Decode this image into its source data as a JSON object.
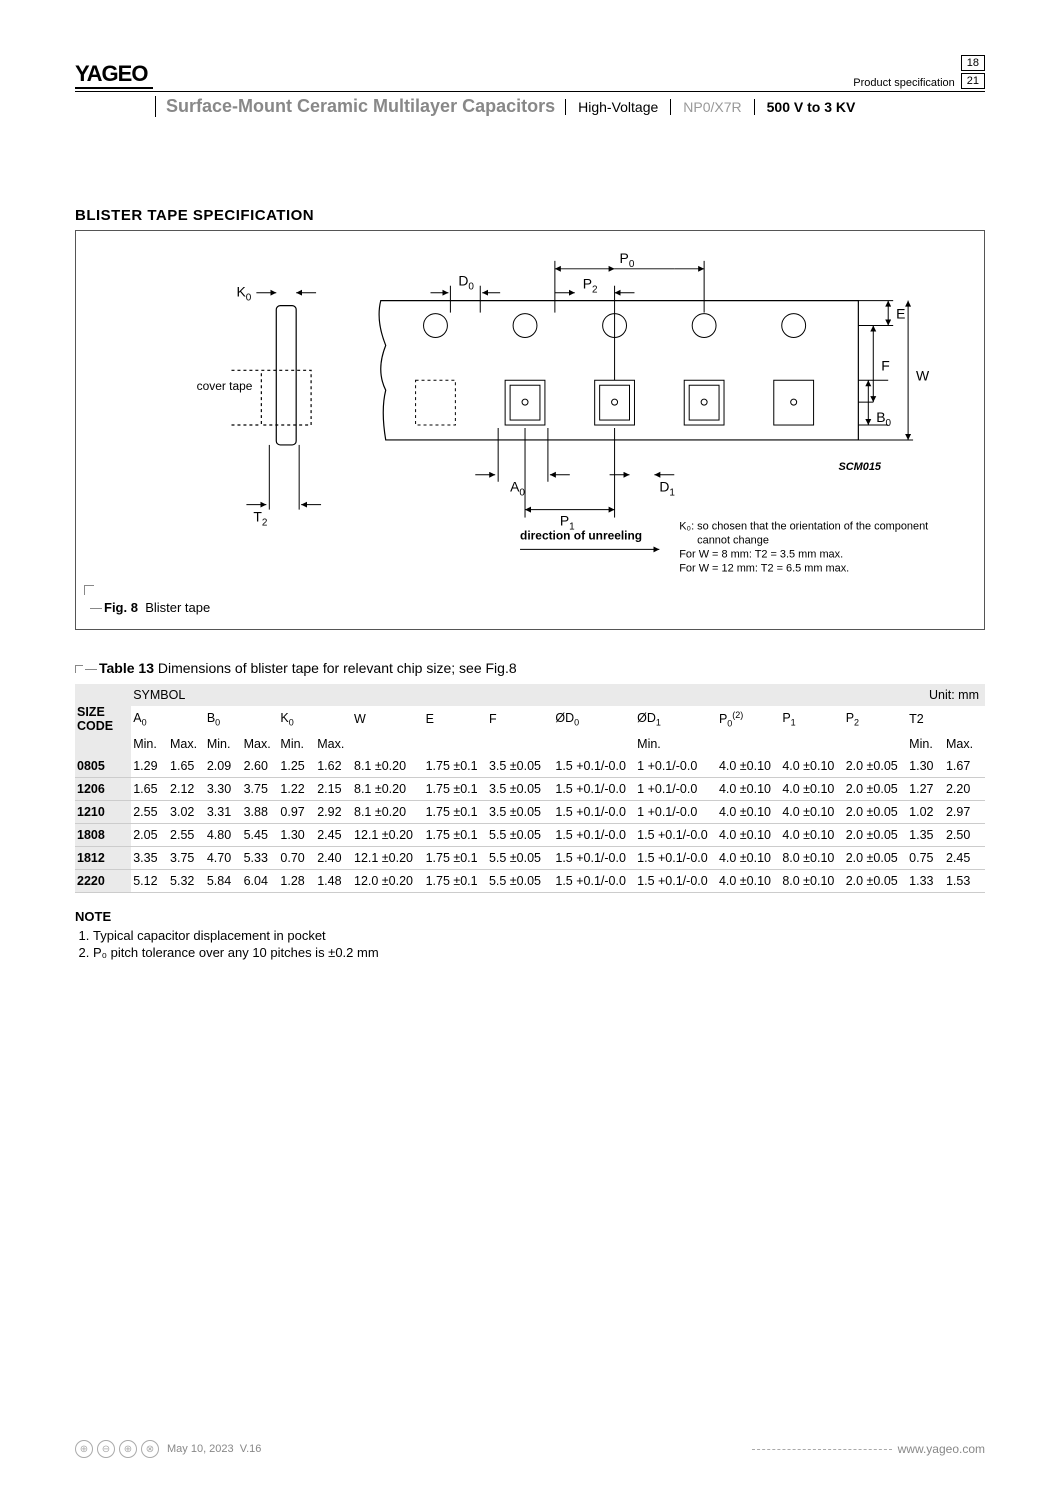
{
  "header": {
    "logo": "YAGEO",
    "spec_label": "Product specification",
    "page_current": "18",
    "page_total": "21",
    "title": "Surface-Mount Ceramic Multilayer Capacitors",
    "tag1": "High-Voltage",
    "tag2": "NP0/X7R",
    "tag3": "500 V to 3 KV"
  },
  "section": {
    "title": "BLISTER TAPE SPECIFICATION"
  },
  "figure": {
    "number": "Fig. 8",
    "caption": "Blister tape",
    "labels": {
      "K0": "K",
      "K0sub": "0",
      "cover_tape": "cover tape",
      "T2": "T",
      "T2sub": "2",
      "D0": "D",
      "D0sub": "0",
      "A0": "A",
      "A0sub": "0",
      "P1": "P",
      "P1sub": "1",
      "D1": "D",
      "D1sub": "1",
      "P0": "P",
      "P0sub": "0",
      "P2": "P",
      "P2sub": "2",
      "E": "E",
      "F": "F",
      "W": "W",
      "B0": "B",
      "B0sub": "0",
      "diagram_code": "SCM015",
      "direction": "direction of unreeling",
      "note1": "K₀: so chosen that the orientation of the component",
      "note2": "cannot change",
      "note3": "For W = 8 mm: T2 = 3.5 mm max.",
      "note4": "For W = 12 mm: T2 = 6.5 mm max."
    }
  },
  "table": {
    "number": "Table 13",
    "caption": "Dimensions of blister tape for relevant chip size; see Fig.8",
    "unit": "Unit: mm",
    "hdr_symbol": "SYMBOL",
    "hdr_size": "SIZE CODE",
    "cols": {
      "A0": "A",
      "B0": "B",
      "K0": "K",
      "W": "W",
      "E": "E",
      "F": "F",
      "D0": "ØD",
      "D1": "ØD",
      "P0": "P",
      "P1": "P",
      "P2": "P",
      "T2": "T2"
    },
    "subs": {
      "A0": "0",
      "B0": "0",
      "K0": "0",
      "D0": "0",
      "D1": "1",
      "P0": "0",
      "P0sup": "(2)",
      "P1": "1",
      "P2": "2"
    },
    "minmax": {
      "min": "Min.",
      "max": "Max."
    },
    "rows": [
      {
        "code": "0805",
        "a": [
          "1.29",
          "1.65"
        ],
        "b": [
          "2.09",
          "2.60"
        ],
        "k": [
          "1.25",
          "1.62"
        ],
        "w": "8.1 ±0.20",
        "e": "1.75 ±0.1",
        "f": "3.5 ±0.05",
        "d0": "1.5 +0.1/-0.0",
        "d1": "1 +0.1/-0.0",
        "p0": "4.0 ±0.10",
        "p1": "4.0 ±0.10",
        "p2": "2.0 ±0.05",
        "t2": [
          "1.30",
          "1.67"
        ]
      },
      {
        "code": "1206",
        "a": [
          "1.65",
          "2.12"
        ],
        "b": [
          "3.30",
          "3.75"
        ],
        "k": [
          "1.22",
          "2.15"
        ],
        "w": "8.1 ±0.20",
        "e": "1.75 ±0.1",
        "f": "3.5 ±0.05",
        "d0": "1.5 +0.1/-0.0",
        "d1": "1 +0.1/-0.0",
        "p0": "4.0 ±0.10",
        "p1": "4.0 ±0.10",
        "p2": "2.0 ±0.05",
        "t2": [
          "1.27",
          "2.20"
        ]
      },
      {
        "code": "1210",
        "a": [
          "2.55",
          "3.02"
        ],
        "b": [
          "3.31",
          "3.88"
        ],
        "k": [
          "0.97",
          "2.92"
        ],
        "w": "8.1 ±0.20",
        "e": "1.75 ±0.1",
        "f": "3.5 ±0.05",
        "d0": "1.5 +0.1/-0.0",
        "d1": "1 +0.1/-0.0",
        "p0": "4.0 ±0.10",
        "p1": "4.0 ±0.10",
        "p2": "2.0 ±0.05",
        "t2": [
          "1.02",
          "2.97"
        ]
      },
      {
        "code": "1808",
        "a": [
          "2.05",
          "2.55"
        ],
        "b": [
          "4.80",
          "5.45"
        ],
        "k": [
          "1.30",
          "2.45"
        ],
        "w": "12.1 ±0.20",
        "e": "1.75 ±0.1",
        "f": "5.5 ±0.05",
        "d0": "1.5 +0.1/-0.0",
        "d1": "1.5 +0.1/-0.0",
        "p0": "4.0 ±0.10",
        "p1": "4.0 ±0.10",
        "p2": "2.0 ±0.05",
        "t2": [
          "1.35",
          "2.50"
        ]
      },
      {
        "code": "1812",
        "a": [
          "3.35",
          "3.75"
        ],
        "b": [
          "4.70",
          "5.33"
        ],
        "k": [
          "0.70",
          "2.40"
        ],
        "w": "12.1 ±0.20",
        "e": "1.75 ±0.1",
        "f": "5.5 ±0.05",
        "d0": "1.5 +0.1/-0.0",
        "d1": "1.5 +0.1/-0.0",
        "p0": "4.0 ±0.10",
        "p1": "8.0 ±0.10",
        "p2": "2.0 ±0.05",
        "t2": [
          "0.75",
          "2.45"
        ]
      },
      {
        "code": "2220",
        "a": [
          "5.12",
          "5.32"
        ],
        "b": [
          "5.84",
          "6.04"
        ],
        "k": [
          "1.28",
          "1.48"
        ],
        "w": "12.0 ±0.20",
        "e": "1.75 ±0.1",
        "f": "5.5 ±0.05",
        "d0": "1.5 +0.1/-0.0",
        "d1": "1.5 +0.1/-0.0",
        "p0": "4.0 ±0.10",
        "p1": "8.0 ±0.10",
        "p2": "2.0 ±0.05",
        "t2": [
          "1.33",
          "1.53"
        ]
      }
    ]
  },
  "notes": {
    "title": "NOTE",
    "items": [
      "Typical capacitor displacement in pocket",
      "P₀ pitch tolerance over any 10 pitches is ±0.2 mm"
    ]
  },
  "footer": {
    "date": "May 10, 2023",
    "version": "V.16",
    "url": "www.yageo.com"
  }
}
